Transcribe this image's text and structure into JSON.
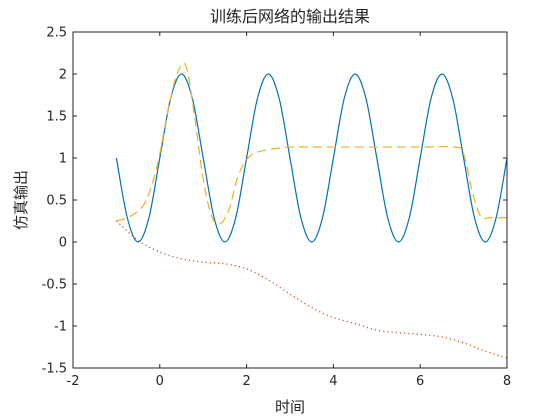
{
  "chart_data": {
    "type": "line",
    "title": "训练后网络的输出结果",
    "xlabel": "时间",
    "ylabel": "仿真输出",
    "xlim": [
      -2,
      8
    ],
    "ylim": [
      -1.5,
      2.5
    ],
    "xticks": [
      -2,
      0,
      2,
      4,
      6,
      8
    ],
    "yticks": [
      -1.5,
      -1,
      -0.5,
      0,
      0.5,
      1,
      1.5,
      2,
      2.5
    ],
    "xtick_labels": [
      "-2",
      "0",
      "2",
      "4",
      "6",
      "8"
    ],
    "ytick_labels": [
      "-1.5",
      "-1",
      "-0.5",
      "0",
      "0.5",
      "1",
      "1.5",
      "2",
      "2.5"
    ],
    "grid": false,
    "legend": "none",
    "series": [
      {
        "color": "#0072BD",
        "style": "solid",
        "x": [
          -1.0,
          -0.75,
          -0.5,
          -0.25,
          0.0,
          0.25,
          0.5,
          0.75,
          1.0,
          1.25,
          1.5,
          1.75,
          2.0,
          2.25,
          2.5,
          2.75,
          3.0,
          3.25,
          3.5,
          3.75,
          4.0,
          4.25,
          4.5,
          4.75,
          5.0,
          5.25,
          5.5,
          5.75,
          6.0,
          6.25,
          6.5,
          6.75,
          7.0,
          7.25,
          7.5,
          7.75,
          8.0
        ],
        "y": [
          1.0,
          0.29,
          0.0,
          0.29,
          1.0,
          1.71,
          2.0,
          1.71,
          1.0,
          0.29,
          0.0,
          0.29,
          1.0,
          1.71,
          2.0,
          1.71,
          1.0,
          0.29,
          0.0,
          0.29,
          1.0,
          1.71,
          2.0,
          1.71,
          1.0,
          0.29,
          0.0,
          0.29,
          1.0,
          1.71,
          2.0,
          1.71,
          1.0,
          0.29,
          0.0,
          0.29,
          1.0
        ]
      },
      {
        "color": "#EDB120",
        "style": "dashed",
        "x": [
          -1.0,
          -0.7,
          -0.4,
          -0.2,
          0.0,
          0.2,
          0.4,
          0.6,
          0.8,
          1.0,
          1.2,
          1.4,
          1.6,
          1.8,
          2.0,
          2.2,
          2.5,
          2.8,
          3.0,
          4.0,
          5.0,
          6.0,
          6.8,
          7.0,
          7.2,
          7.4,
          7.6,
          8.0
        ],
        "y": [
          0.25,
          0.3,
          0.42,
          0.65,
          1.05,
          1.6,
          2.0,
          2.1,
          1.5,
          0.75,
          0.3,
          0.22,
          0.4,
          0.78,
          0.98,
          1.06,
          1.1,
          1.12,
          1.13,
          1.13,
          1.13,
          1.13,
          1.13,
          1.05,
          0.6,
          0.3,
          0.29,
          0.29
        ]
      },
      {
        "color": "#D95319",
        "style": "dotted",
        "x": [
          -1.0,
          -0.5,
          0.0,
          0.5,
          1.0,
          1.5,
          2.0,
          2.5,
          3.0,
          3.5,
          4.0,
          4.5,
          5.0,
          5.5,
          6.0,
          6.5,
          7.0,
          7.5,
          8.0
        ],
        "y": [
          0.25,
          0.02,
          -0.12,
          -0.2,
          -0.24,
          -0.26,
          -0.32,
          -0.45,
          -0.62,
          -0.78,
          -0.9,
          -0.97,
          -1.05,
          -1.08,
          -1.1,
          -1.13,
          -1.2,
          -1.3,
          -1.38
        ]
      }
    ]
  }
}
